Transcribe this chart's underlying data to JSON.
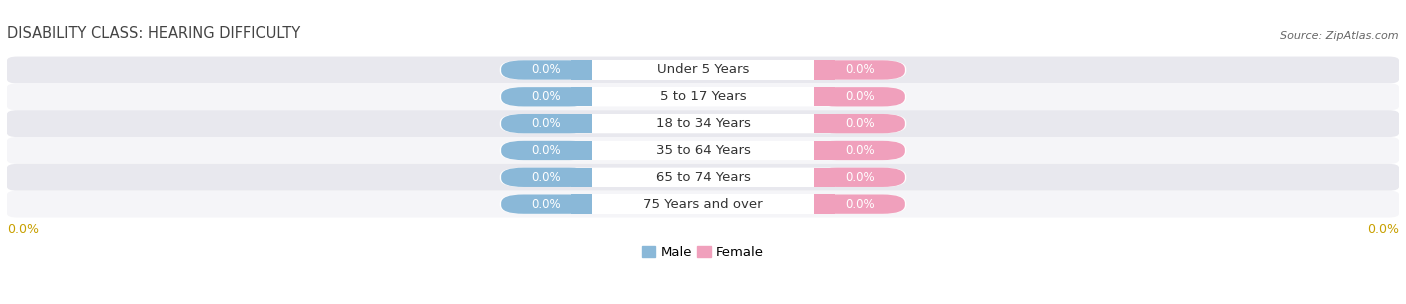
{
  "title": "DISABILITY CLASS: HEARING DIFFICULTY",
  "source": "Source: ZipAtlas.com",
  "categories": [
    "Under 5 Years",
    "5 to 17 Years",
    "18 to 34 Years",
    "35 to 64 Years",
    "65 to 74 Years",
    "75 Years and over"
  ],
  "male_values": [
    0.0,
    0.0,
    0.0,
    0.0,
    0.0,
    0.0
  ],
  "female_values": [
    0.0,
    0.0,
    0.0,
    0.0,
    0.0,
    0.0
  ],
  "male_color": "#8ab8d8",
  "female_color": "#f0a0bc",
  "row_colors": [
    "#e8e8ee",
    "#f5f5f8",
    "#e8e8ee",
    "#f5f5f8",
    "#e8e8ee",
    "#f5f5f8"
  ],
  "label_color": "#ffffff",
  "category_text_color": "#333333",
  "title_color": "#444444",
  "axis_label_color": "#c8a000",
  "source_color": "#666666",
  "title_fontsize": 10.5,
  "category_fontsize": 9.5,
  "value_fontsize": 8.5,
  "axis_fontsize": 9,
  "source_fontsize": 8
}
